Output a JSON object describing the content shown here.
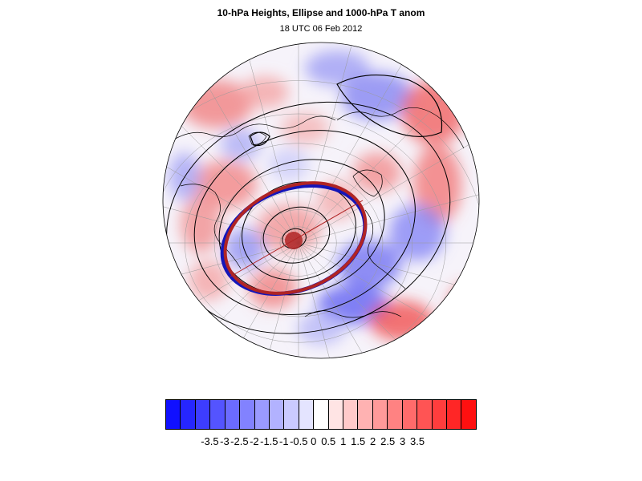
{
  "title": "10-hPa Heights, Ellipse and 1000-hPa T anom",
  "subtitle": "18 UTC 06 Feb 2012",
  "map": {
    "projection": "orthographic-polar",
    "ellipse_colors": [
      "#1515b8",
      "#b02424"
    ],
    "contour_color": "#000000"
  },
  "colorbar": {
    "colors": [
      "#1010ff",
      "#2626ff",
      "#3d3dff",
      "#5454ff",
      "#6b6bff",
      "#8282ff",
      "#9a9aff",
      "#b2b2ff",
      "#cacaff",
      "#e4e4ff",
      "#ffffff",
      "#ffe4e4",
      "#ffcaca",
      "#ffb2b2",
      "#ff9a9a",
      "#ff8282",
      "#ff6b6b",
      "#ff5454",
      "#ff3d3d",
      "#ff2626",
      "#ff1010"
    ],
    "labels": [
      "-3.5",
      "-3",
      "-2.5",
      "-2",
      "-1.5",
      "-1",
      "-0.5",
      "0",
      "0.5",
      "1",
      "1.5",
      "2",
      "2.5",
      "3",
      "3.5"
    ]
  }
}
